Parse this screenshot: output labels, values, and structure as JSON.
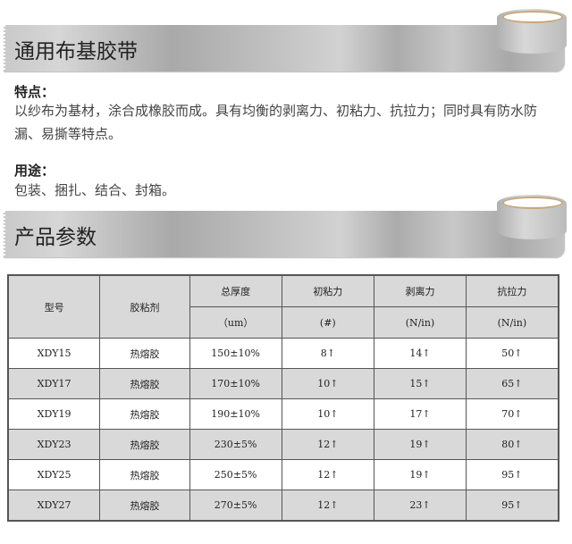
{
  "banners": {
    "general": {
      "title": "通用布基胶带"
    },
    "params": {
      "title": "产品参数"
    }
  },
  "features": {
    "heading": "特点：",
    "text": "以纱布为基材，涂合成橡胶而成。具有均衡的剥离力、初粘力、抗拉力；同时具有防水防漏、易撕等特点。"
  },
  "usage": {
    "heading": "用途：",
    "text": "包装、捆扎、结合、封箱。"
  },
  "table": {
    "headers": {
      "model": "型号",
      "adhesive": "胶粘剂",
      "thickness": "总厚度",
      "thickness_unit": "（um）",
      "tack": "初粘力",
      "tack_unit": "(#)",
      "peel": "剥离力",
      "peel_unit": "(N/in)",
      "tensile": "抗拉力",
      "tensile_unit": "(N/in)"
    },
    "rows": [
      {
        "model": "XDY15",
        "adhesive": "热熔胶",
        "thickness": "150±10%",
        "tack": "8↑",
        "peel": "14↑",
        "tensile": "50↑"
      },
      {
        "model": "XDY17",
        "adhesive": "热熔胶",
        "thickness": "170±10%",
        "tack": "10↑",
        "peel": "15↑",
        "tensile": "65↑"
      },
      {
        "model": "XDY19",
        "adhesive": "热熔胶",
        "thickness": "190±10%",
        "tack": "10↑",
        "peel": "17↑",
        "tensile": "70↑"
      },
      {
        "model": "XDY23",
        "adhesive": "热熔胶",
        "thickness": "230±5%",
        "tack": "12↑",
        "peel": "19↑",
        "tensile": "80↑"
      },
      {
        "model": "XDY25",
        "adhesive": "热熔胶",
        "thickness": "250±5%",
        "tack": "12↑",
        "peel": "19↑",
        "tensile": "95↑"
      },
      {
        "model": "XDY27",
        "adhesive": "热熔胶",
        "thickness": "270±5%",
        "tack": "12↑",
        "peel": "23↑",
        "tensile": "95↑"
      }
    ]
  }
}
